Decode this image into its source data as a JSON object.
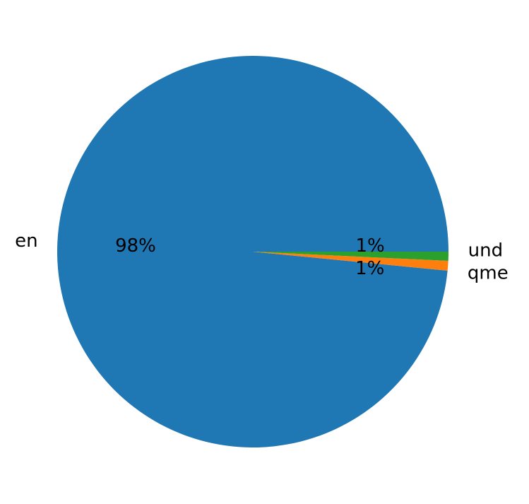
{
  "chart_data": {
    "type": "pie",
    "title": "",
    "labels": [
      "en",
      "qme",
      "und"
    ],
    "values": [
      98.45,
      0.8,
      0.75
    ],
    "pct_labels": [
      "98%",
      "1%",
      "1%"
    ],
    "colors": [
      "#1f77b4",
      "#ff7f0e",
      "#2ca02c"
    ],
    "start_angle_deg": 0,
    "direction": "counterclockwise"
  }
}
